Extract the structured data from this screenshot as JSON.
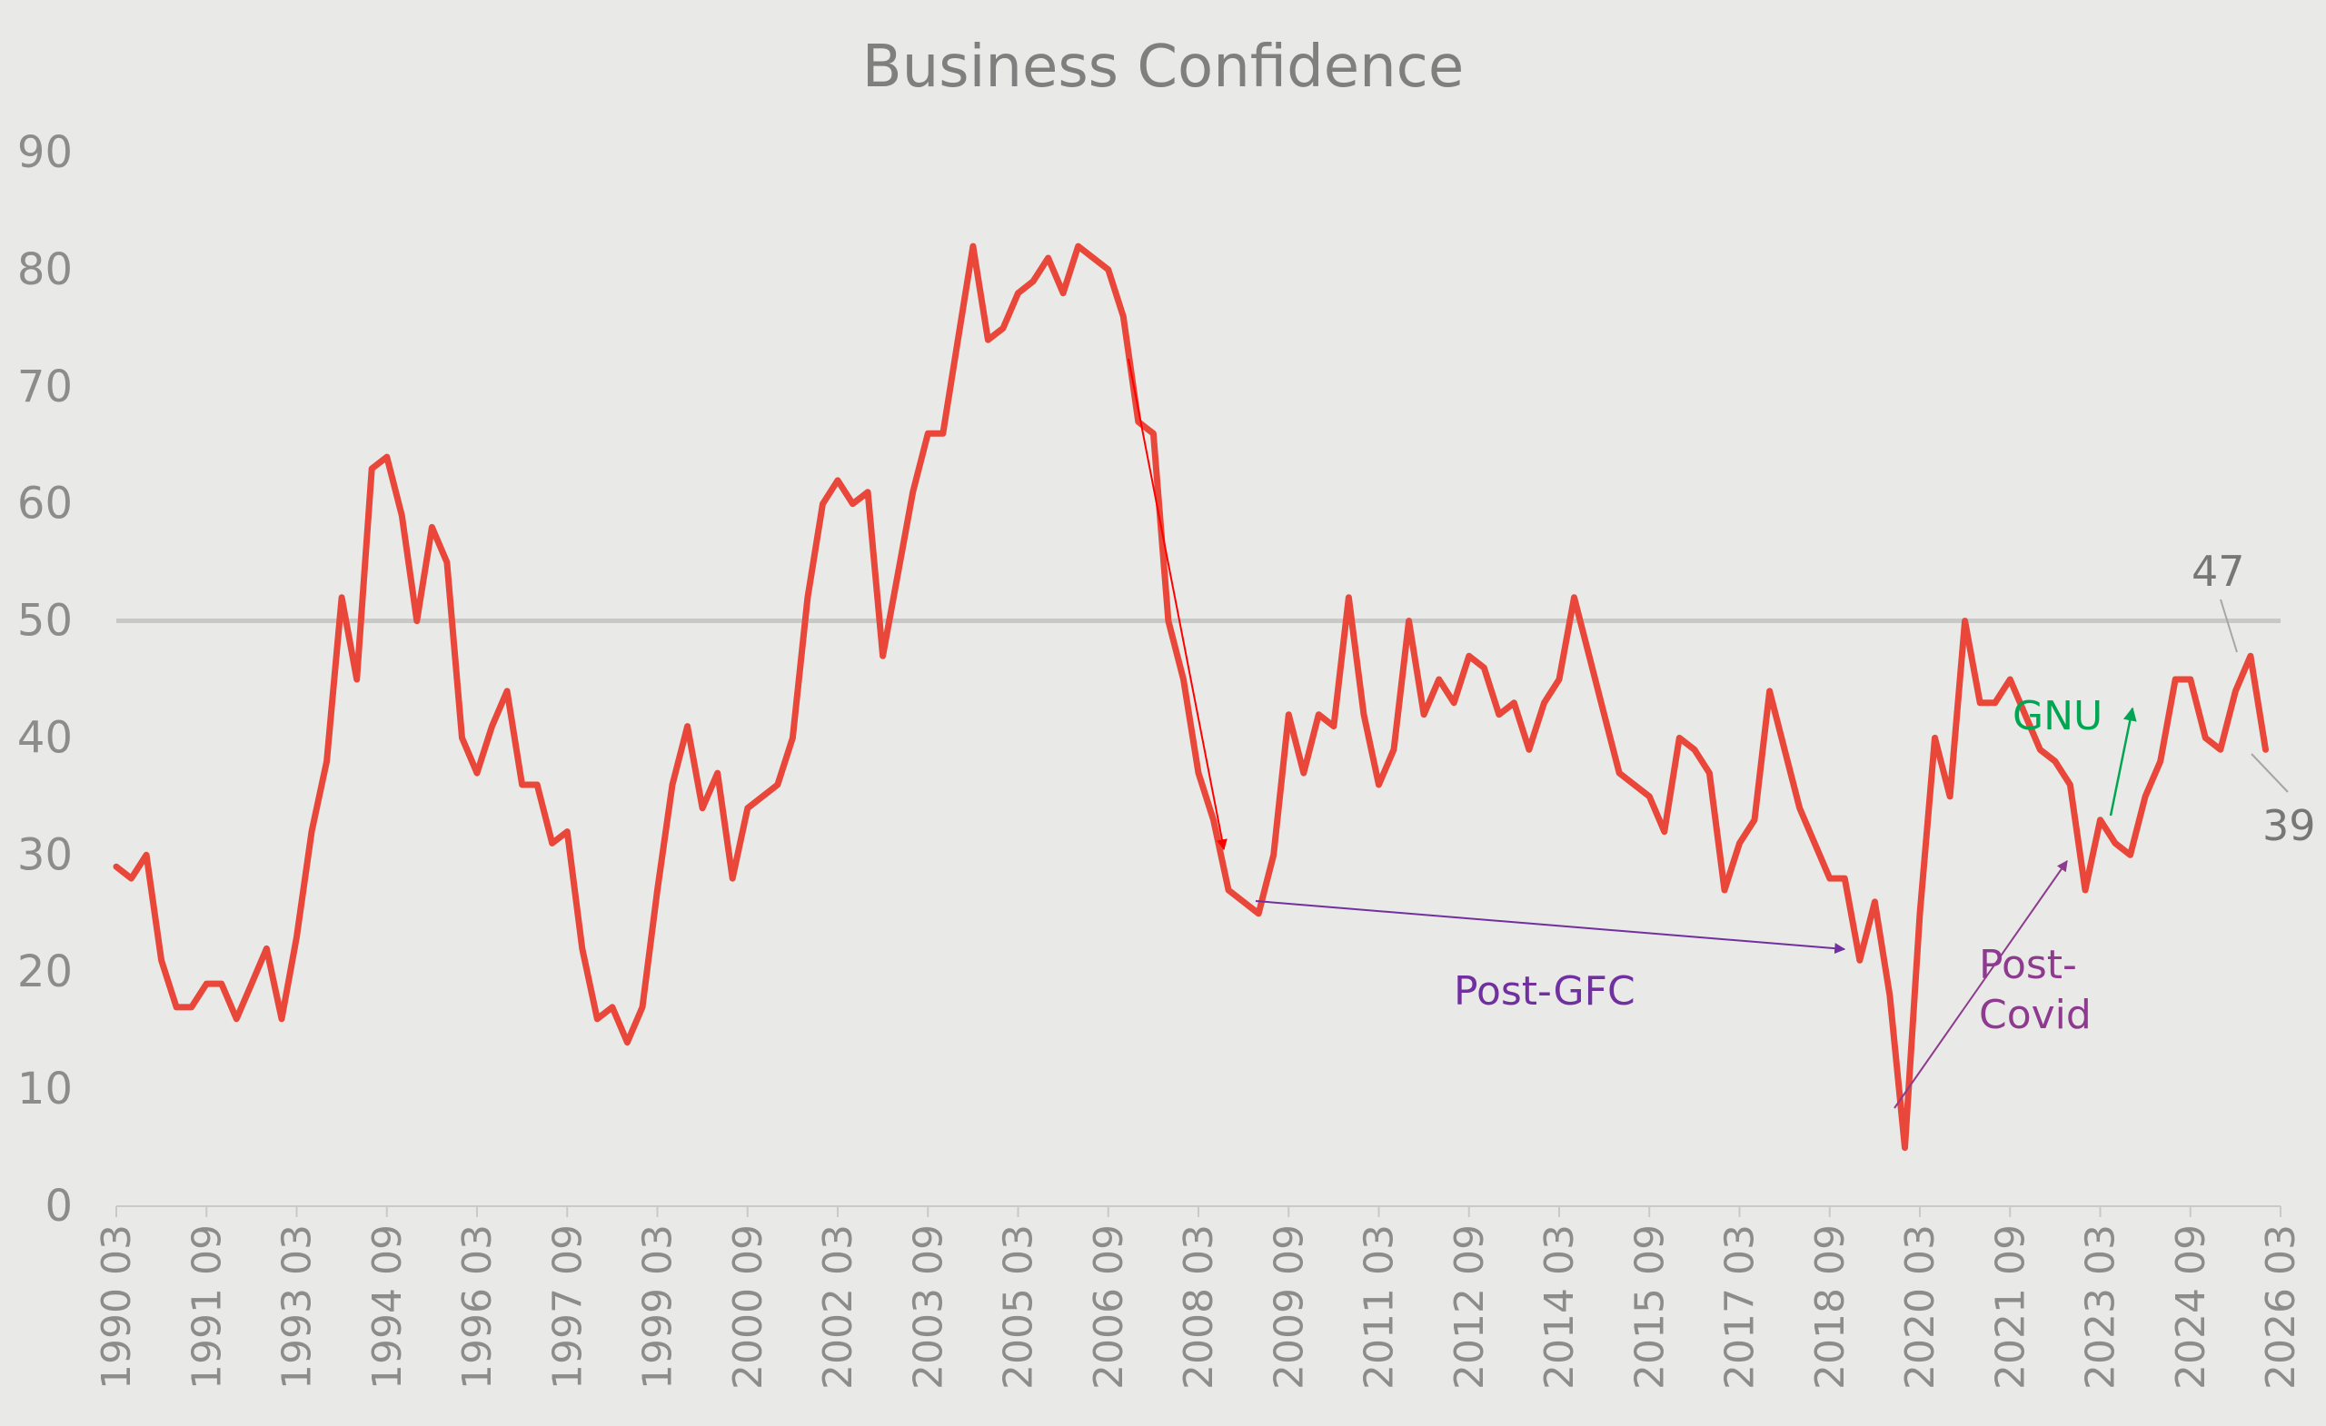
{
  "chart_data": {
    "type": "line",
    "title": "Business Confidence",
    "xlabel": "",
    "ylabel": "",
    "ylim": [
      0,
      90
    ],
    "yticks": [
      0,
      10,
      20,
      30,
      40,
      50,
      60,
      70,
      80,
      90
    ],
    "xticks": [
      "1990 03",
      "1991 09",
      "1993 03",
      "1994 09",
      "1996 03",
      "1997 09",
      "1999 03",
      "2000 09",
      "2002 03",
      "2003 09",
      "2005 03",
      "2006 09",
      "2008 03",
      "2009 09",
      "2011 03",
      "2012 09",
      "2014 03",
      "2015 09",
      "2017 03",
      "2018 09",
      "2020 03",
      "2021 09",
      "2023 03",
      "2024 09",
      "2026 03"
    ],
    "reference_line": 50,
    "start_period": "1990 03",
    "quarterly": true,
    "series": [
      {
        "color": "#e8473a",
        "values": [
          29,
          28,
          30,
          21,
          17,
          17,
          19,
          19,
          16,
          19,
          22,
          16,
          23,
          32,
          38,
          52,
          45,
          63,
          64,
          59,
          50,
          58,
          55,
          40,
          37,
          41,
          44,
          36,
          36,
          31,
          32,
          22,
          16,
          17,
          14,
          17,
          27,
          36,
          41,
          34,
          37,
          28,
          34,
          35,
          36,
          40,
          52,
          60,
          62,
          60,
          61,
          47,
          54,
          61,
          66,
          66,
          74,
          82,
          74,
          75,
          78,
          79,
          81,
          78,
          82,
          81,
          80,
          76,
          67,
          66,
          50,
          45,
          37,
          33,
          27,
          26,
          25,
          30,
          42,
          37,
          42,
          41,
          52,
          42,
          36,
          39,
          50,
          42,
          45,
          43,
          47,
          46,
          42,
          43,
          39,
          43,
          45,
          52,
          47,
          42,
          37,
          36,
          35,
          32,
          40,
          39,
          37,
          27,
          31,
          33,
          44,
          39,
          34,
          31,
          28,
          28,
          21,
          26,
          18,
          5,
          25,
          40,
          35,
          50,
          43,
          43,
          45,
          42,
          39,
          38,
          36,
          27,
          33,
          31,
          30,
          35,
          38,
          45,
          45,
          40,
          39,
          44,
          47,
          39
        ]
      }
    ],
    "annotations": [
      {
        "text": "Post-GFC",
        "color": "#7030a0"
      },
      {
        "text_lines": [
          "Post-",
          "Covid"
        ],
        "color": "#8e3a8e"
      },
      {
        "text": "GNU",
        "color": "#00a651"
      },
      {
        "color": "#ff0000"
      }
    ],
    "end_labels": [
      {
        "text": "47",
        "value": 47
      },
      {
        "text": "39",
        "value": 39
      }
    ]
  }
}
